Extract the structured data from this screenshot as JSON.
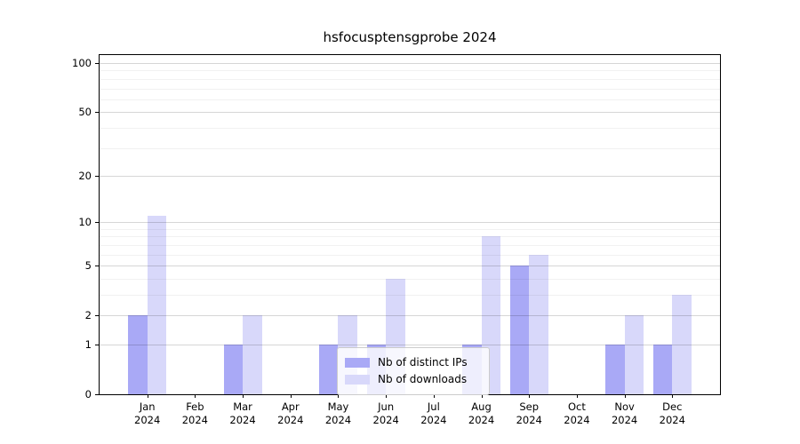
{
  "title": "hsfocusptensgprobe 2024",
  "chart_data": {
    "type": "bar",
    "title": "hsfocusptensgprobe 2024",
    "categories": [
      "Jan 2024",
      "Feb 2024",
      "Mar 2024",
      "Apr 2024",
      "May 2024",
      "Jun 2024",
      "Jul 2024",
      "Aug 2024",
      "Sep 2024",
      "Oct 2024",
      "Nov 2024",
      "Dec 2024"
    ],
    "x_tick_months": [
      "Jan",
      "Feb",
      "Mar",
      "Apr",
      "May",
      "Jun",
      "Jul",
      "Aug",
      "Sep",
      "Oct",
      "Nov",
      "Dec"
    ],
    "x_tick_year": "2024",
    "series": [
      {
        "name": "Nb of distinct IPs",
        "color": "#a9a9f6",
        "values": [
          2,
          0,
          1,
          0,
          1,
          1,
          0,
          1,
          5,
          0,
          1,
          1
        ]
      },
      {
        "name": "Nb of downloads",
        "color": "#d8d8fa",
        "values": [
          11,
          0,
          2,
          0,
          2,
          4,
          0,
          8,
          6,
          0,
          2,
          3
        ]
      }
    ],
    "y_scale": "log1p",
    "y_ticks": [
      0,
      1,
      2,
      5,
      10,
      20,
      50,
      100
    ],
    "y_minor_ticks": [
      3,
      4,
      6,
      7,
      8,
      9,
      30,
      40,
      60,
      70,
      80,
      90
    ],
    "ylim": [
      0,
      112
    ],
    "xlabel": "",
    "ylabel": "",
    "grid": true,
    "legend_position": "lower center"
  },
  "legend": {
    "entries": [
      {
        "label": "Nb of distinct IPs",
        "color": "#a9a9f6"
      },
      {
        "label": "Nb of downloads",
        "color": "#d8d8fa"
      }
    ]
  },
  "colors": {
    "background": "#ffffff",
    "bar_distinct_ips": "#a9a9f6",
    "bar_downloads": "#d8d8fa",
    "spine": "#000000",
    "grid_major": "#d6d6d6",
    "grid_minor": "#f0f0f0",
    "text": "#000000",
    "legend_border": "#cccccc"
  }
}
